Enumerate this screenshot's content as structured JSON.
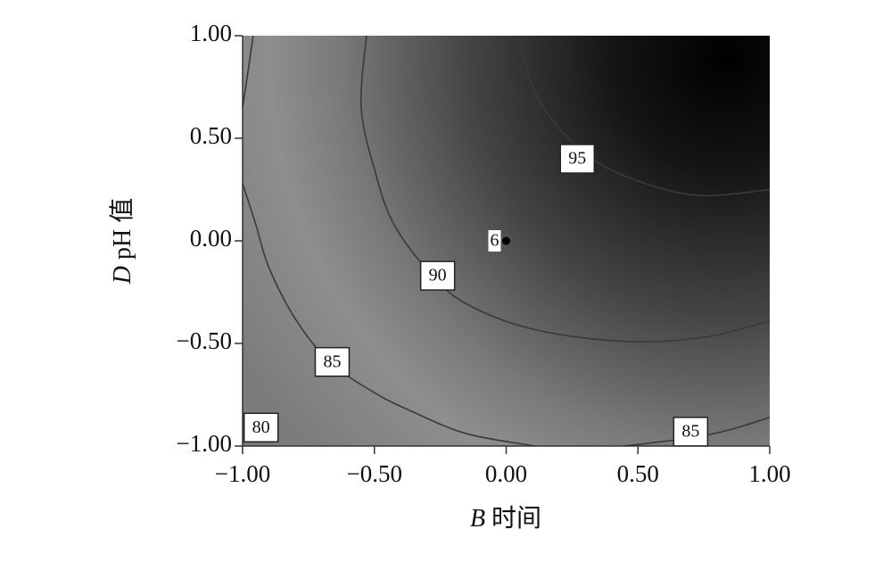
{
  "chart_data": {
    "type": "contour",
    "xlabel_var": "B",
    "xlabel": "时间",
    "ylabel_var": "D",
    "ylabel": "pH 值",
    "xlim": [
      -1,
      1
    ],
    "ylim": [
      -1,
      1
    ],
    "xticks": [
      {
        "value": -1,
        "label": "−1.00"
      },
      {
        "value": -0.5,
        "label": "−0.50"
      },
      {
        "value": 0,
        "label": "0.00"
      },
      {
        "value": 0.5,
        "label": "0.50"
      },
      {
        "value": 1,
        "label": "1.00"
      }
    ],
    "yticks": [
      {
        "value": -1,
        "label": "−1.00"
      },
      {
        "value": -0.5,
        "label": "−0.50"
      },
      {
        "value": 0,
        "label": "0.00"
      },
      {
        "value": 0.5,
        "label": "0.50"
      },
      {
        "value": 1,
        "label": "1.00"
      }
    ],
    "line_color": "#3a3a3a",
    "contours": [
      {
        "level": 95,
        "x": [
          0.05,
          0.1,
          0.2,
          0.35,
          0.55,
          0.75,
          1.0
        ],
        "y": [
          1.0,
          0.75,
          0.55,
          0.38,
          0.27,
          0.22,
          0.25
        ],
        "label_x": 0.27,
        "label_y": 0.4
      },
      {
        "level": 90,
        "x": [
          -0.53,
          -0.55,
          -0.5,
          -0.43,
          -0.3,
          -0.16,
          0.1,
          0.45,
          0.75,
          1.0
        ],
        "y": [
          1.0,
          0.65,
          0.35,
          0.09,
          -0.14,
          -0.3,
          -0.43,
          -0.49,
          -0.47,
          -0.39
        ],
        "label_x": -0.26,
        "label_y": -0.17
      },
      {
        "level": 85,
        "x": [
          -1.0,
          -0.95,
          -0.9,
          -0.8,
          -0.67,
          -0.5,
          -0.36,
          -0.15,
          0.11
        ],
        "y": [
          0.28,
          0.08,
          -0.13,
          -0.38,
          -0.59,
          -0.74,
          -0.83,
          -0.94,
          -1.0
        ],
        "label_x": -0.66,
        "label_y": -0.59
      },
      {
        "level": 85,
        "x": [
          0.45,
          0.7,
          0.85,
          1.0
        ],
        "y": [
          -1.0,
          -0.96,
          -0.92,
          -0.86
        ],
        "label_x": 0.7,
        "label_y": -0.93
      },
      {
        "level": 80,
        "x": [
          -0.96,
          -0.98,
          -1.0
        ],
        "y": [
          1.0,
          0.82,
          0.65
        ],
        "label_x": -0.93,
        "label_y": -0.91
      }
    ],
    "center_point": {
      "x": 0,
      "y": 0,
      "label": "6"
    }
  }
}
